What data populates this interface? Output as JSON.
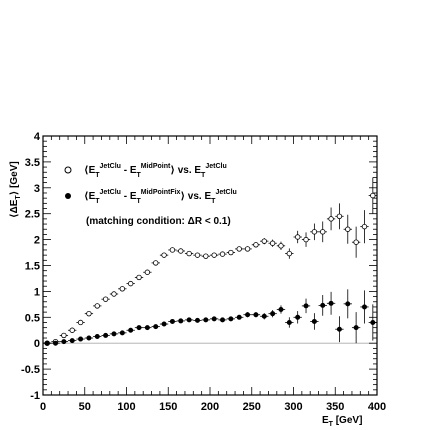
{
  "chart_data": {
    "type": "scatter",
    "xlabel": "E_T [GeV]",
    "ylabel": "⟨ΔE_T⟩ [GeV]",
    "xlim": [
      0,
      400
    ],
    "ylim": [
      -1,
      4
    ],
    "x_ticks": [
      0,
      50,
      100,
      150,
      200,
      250,
      300,
      350,
      400
    ],
    "y_ticks": [
      -1,
      -0.5,
      0,
      0.5,
      1,
      1.5,
      2,
      2.5,
      3,
      3.5,
      4
    ],
    "grid": false,
    "legend_position": "top-left",
    "annotation": "(matching condition: ΔR < 0.1)",
    "series": [
      {
        "name": "⟨E_T^JetClu - E_T^MidPoint⟩ vs. E_T^JetClu",
        "marker": "open-circle",
        "points": [
          {
            "x": 5,
            "y": 0.0,
            "e": 0.02
          },
          {
            "x": 15,
            "y": 0.03,
            "e": 0.02
          },
          {
            "x": 25,
            "y": 0.15,
            "e": 0.02
          },
          {
            "x": 35,
            "y": 0.25,
            "e": 0.02
          },
          {
            "x": 45,
            "y": 0.4,
            "e": 0.02
          },
          {
            "x": 55,
            "y": 0.57,
            "e": 0.02
          },
          {
            "x": 65,
            "y": 0.72,
            "e": 0.02
          },
          {
            "x": 75,
            "y": 0.85,
            "e": 0.02
          },
          {
            "x": 85,
            "y": 0.95,
            "e": 0.02
          },
          {
            "x": 95,
            "y": 1.05,
            "e": 0.02
          },
          {
            "x": 105,
            "y": 1.15,
            "e": 0.02
          },
          {
            "x": 115,
            "y": 1.27,
            "e": 0.02
          },
          {
            "x": 125,
            "y": 1.37,
            "e": 0.02
          },
          {
            "x": 135,
            "y": 1.55,
            "e": 0.03
          },
          {
            "x": 145,
            "y": 1.7,
            "e": 0.03
          },
          {
            "x": 155,
            "y": 1.8,
            "e": 0.03
          },
          {
            "x": 165,
            "y": 1.78,
            "e": 0.03
          },
          {
            "x": 175,
            "y": 1.73,
            "e": 0.03
          },
          {
            "x": 185,
            "y": 1.7,
            "e": 0.03
          },
          {
            "x": 195,
            "y": 1.68,
            "e": 0.03
          },
          {
            "x": 205,
            "y": 1.7,
            "e": 0.03
          },
          {
            "x": 215,
            "y": 1.72,
            "e": 0.04
          },
          {
            "x": 225,
            "y": 1.75,
            "e": 0.04
          },
          {
            "x": 235,
            "y": 1.82,
            "e": 0.04
          },
          {
            "x": 245,
            "y": 1.82,
            "e": 0.05
          },
          {
            "x": 255,
            "y": 1.9,
            "e": 0.05
          },
          {
            "x": 265,
            "y": 1.97,
            "e": 0.06
          },
          {
            "x": 275,
            "y": 1.93,
            "e": 0.07
          },
          {
            "x": 285,
            "y": 1.88,
            "e": 0.08
          },
          {
            "x": 295,
            "y": 1.73,
            "e": 0.1
          },
          {
            "x": 305,
            "y": 2.05,
            "e": 0.12
          },
          {
            "x": 315,
            "y": 2.0,
            "e": 0.14
          },
          {
            "x": 325,
            "y": 2.15,
            "e": 0.16
          },
          {
            "x": 335,
            "y": 2.15,
            "e": 0.2
          },
          {
            "x": 345,
            "y": 2.4,
            "e": 0.22
          },
          {
            "x": 355,
            "y": 2.45,
            "e": 0.25
          },
          {
            "x": 365,
            "y": 2.2,
            "e": 0.28
          },
          {
            "x": 375,
            "y": 1.95,
            "e": 0.3
          },
          {
            "x": 385,
            "y": 2.25,
            "e": 0.32
          },
          {
            "x": 395,
            "y": 2.85,
            "e": 0.35
          }
        ]
      },
      {
        "name": "⟨E_T^JetClu - E_T^MidPointFix⟩ vs. E_T^JetClu",
        "marker": "filled-circle",
        "points": [
          {
            "x": 5,
            "y": 0.0,
            "e": 0.02
          },
          {
            "x": 15,
            "y": 0.0,
            "e": 0.02
          },
          {
            "x": 25,
            "y": 0.03,
            "e": 0.02
          },
          {
            "x": 35,
            "y": 0.05,
            "e": 0.02
          },
          {
            "x": 45,
            "y": 0.08,
            "e": 0.02
          },
          {
            "x": 55,
            "y": 0.1,
            "e": 0.02
          },
          {
            "x": 65,
            "y": 0.13,
            "e": 0.02
          },
          {
            "x": 75,
            "y": 0.15,
            "e": 0.02
          },
          {
            "x": 85,
            "y": 0.18,
            "e": 0.02
          },
          {
            "x": 95,
            "y": 0.2,
            "e": 0.02
          },
          {
            "x": 105,
            "y": 0.25,
            "e": 0.02
          },
          {
            "x": 115,
            "y": 0.3,
            "e": 0.02
          },
          {
            "x": 125,
            "y": 0.3,
            "e": 0.02
          },
          {
            "x": 135,
            "y": 0.32,
            "e": 0.03
          },
          {
            "x": 145,
            "y": 0.37,
            "e": 0.03
          },
          {
            "x": 155,
            "y": 0.42,
            "e": 0.03
          },
          {
            "x": 165,
            "y": 0.43,
            "e": 0.03
          },
          {
            "x": 175,
            "y": 0.45,
            "e": 0.03
          },
          {
            "x": 185,
            "y": 0.44,
            "e": 0.03
          },
          {
            "x": 195,
            "y": 0.45,
            "e": 0.03
          },
          {
            "x": 205,
            "y": 0.47,
            "e": 0.03
          },
          {
            "x": 215,
            "y": 0.45,
            "e": 0.04
          },
          {
            "x": 225,
            "y": 0.47,
            "e": 0.04
          },
          {
            "x": 235,
            "y": 0.5,
            "e": 0.04
          },
          {
            "x": 245,
            "y": 0.55,
            "e": 0.05
          },
          {
            "x": 255,
            "y": 0.55,
            "e": 0.05
          },
          {
            "x": 265,
            "y": 0.52,
            "e": 0.06
          },
          {
            "x": 275,
            "y": 0.57,
            "e": 0.07
          },
          {
            "x": 285,
            "y": 0.65,
            "e": 0.08
          },
          {
            "x": 295,
            "y": 0.4,
            "e": 0.1
          },
          {
            "x": 305,
            "y": 0.5,
            "e": 0.12
          },
          {
            "x": 315,
            "y": 0.72,
            "e": 0.14
          },
          {
            "x": 325,
            "y": 0.42,
            "e": 0.16
          },
          {
            "x": 335,
            "y": 0.73,
            "e": 0.2
          },
          {
            "x": 345,
            "y": 0.77,
            "e": 0.22
          },
          {
            "x": 355,
            "y": 0.27,
            "e": 0.25
          },
          {
            "x": 365,
            "y": 0.76,
            "e": 0.28
          },
          {
            "x": 375,
            "y": 0.3,
            "e": 0.3
          },
          {
            "x": 385,
            "y": 0.7,
            "e": 0.32
          },
          {
            "x": 395,
            "y": 0.4,
            "e": 0.35
          }
        ]
      }
    ]
  }
}
